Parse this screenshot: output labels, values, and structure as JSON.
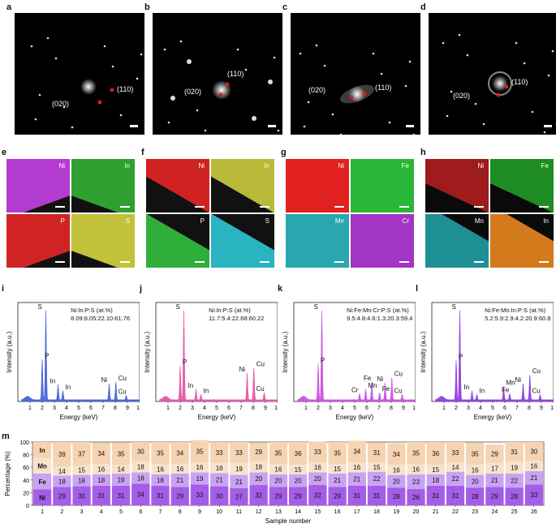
{
  "panel_labels": [
    "a",
    "b",
    "c",
    "d",
    "e",
    "f",
    "g",
    "h",
    "i",
    "j",
    "k",
    "l",
    "m"
  ],
  "saed": [
    {
      "label": "a",
      "spots": [
        "(110)",
        "(020)"
      ]
    },
    {
      "label": "b",
      "spots": [
        "(110)",
        "(020)"
      ]
    },
    {
      "label": "c",
      "spots": [
        "(110)",
        "(020)"
      ]
    },
    {
      "label": "d",
      "spots": [
        "(110)",
        "(020)"
      ]
    }
  ],
  "maps": [
    {
      "label": "e",
      "tiles": [
        {
          "el": "Ni",
          "color": "#b43bd0"
        },
        {
          "el": "In",
          "color": "#2fa02f"
        },
        {
          "el": "P",
          "color": "#d02424"
        },
        {
          "el": "S",
          "color": "#c2c23a"
        }
      ]
    },
    {
      "label": "f",
      "tiles": [
        {
          "el": "Ni",
          "color": "#cf2222"
        },
        {
          "el": "In",
          "color": "#b9b93a"
        },
        {
          "el": "P",
          "color": "#2faf3a"
        },
        {
          "el": "S",
          "color": "#2ab3c0"
        }
      ]
    },
    {
      "label": "g",
      "tiles": [
        {
          "el": "Ni",
          "color": "#e12020"
        },
        {
          "el": "Fe",
          "color": "#29b536"
        },
        {
          "el": "Mn",
          "color": "#28a7ae"
        },
        {
          "el": "Cr",
          "color": "#a335c4"
        }
      ]
    },
    {
      "label": "h",
      "tiles": [
        {
          "el": "Ni",
          "color": "#9e1c1c"
        },
        {
          "el": "Fe",
          "color": "#1e8c22"
        },
        {
          "el": "Mn",
          "color": "#1f8f96"
        },
        {
          "el": "In",
          "color": "#d27a1c"
        }
      ]
    }
  ],
  "spectra": [
    {
      "label": "i",
      "color": "#3d5bd8",
      "formula": "Ni:In:P:S (at.%)",
      "values": "8.09:8.05:22.10:61.76",
      "peaks": [
        {
          "l": "S",
          "x": 2.3,
          "h": 1.0
        },
        {
          "l": "P",
          "x": 2.0,
          "h": 0.45
        },
        {
          "l": "In",
          "x": 3.3,
          "h": 0.17
        },
        {
          "l": "In",
          "x": 3.7,
          "h": 0.1
        },
        {
          "l": "Ni",
          "x": 7.5,
          "h": 0.18
        },
        {
          "l": "Cu",
          "x": 8.05,
          "h": 0.2
        },
        {
          "l": "Cu",
          "x": 8.9,
          "h": 0.05
        }
      ]
    },
    {
      "label": "j",
      "color": "#e34fa0",
      "formula": "Ni:In:P:S (at.%)",
      "values": "11.7:5.4:22.68:60.22",
      "peaks": [
        {
          "l": "S",
          "x": 2.3,
          "h": 1.0
        },
        {
          "l": "P",
          "x": 2.0,
          "h": 0.38
        },
        {
          "l": "In",
          "x": 3.3,
          "h": 0.12
        },
        {
          "l": "In",
          "x": 3.7,
          "h": 0.06
        },
        {
          "l": "Ni",
          "x": 7.5,
          "h": 0.3
        },
        {
          "l": "Cu",
          "x": 8.05,
          "h": 0.36
        },
        {
          "l": "Cu",
          "x": 8.9,
          "h": 0.08
        }
      ]
    },
    {
      "label": "k",
      "color": "#c44be0",
      "formula": "Ni:Fe:Mn:Cr:P:S (at.%)",
      "values": "9.5:4.8:4.6:1.3:20.3:59.4",
      "peaks": [
        {
          "l": "S",
          "x": 2.3,
          "h": 1.0
        },
        {
          "l": "P",
          "x": 2.0,
          "h": 0.4
        },
        {
          "l": "Cr",
          "x": 5.4,
          "h": 0.07
        },
        {
          "l": "Mn",
          "x": 5.9,
          "h": 0.12
        },
        {
          "l": "Fe",
          "x": 6.4,
          "h": 0.2
        },
        {
          "l": "Fe",
          "x": 7.05,
          "h": 0.08
        },
        {
          "l": "Ni",
          "x": 7.5,
          "h": 0.19
        },
        {
          "l": "Cu",
          "x": 8.05,
          "h": 0.25
        },
        {
          "l": "Cu",
          "x": 8.9,
          "h": 0.06
        }
      ]
    },
    {
      "label": "l",
      "color": "#8a35e0",
      "formula": "Ni:Fe:Mn:In:P:S (at.%)",
      "values": "5.2:5.9:2.9:4.2:20.9:60.8",
      "peaks": [
        {
          "l": "S",
          "x": 2.3,
          "h": 1.0
        },
        {
          "l": "P",
          "x": 2.0,
          "h": 0.44
        },
        {
          "l": "In",
          "x": 3.3,
          "h": 0.1
        },
        {
          "l": "In",
          "x": 3.7,
          "h": 0.06
        },
        {
          "l": "Fe",
          "x": 6.4,
          "h": 0.07
        },
        {
          "l": "Mn",
          "x": 5.9,
          "h": 0.15
        },
        {
          "l": "Ni",
          "x": 7.5,
          "h": 0.18
        },
        {
          "l": "Cu",
          "x": 8.05,
          "h": 0.28
        },
        {
          "l": "Cu",
          "x": 8.9,
          "h": 0.06
        }
      ]
    }
  ],
  "spec_axes": {
    "xlabel": "Energy (keV)",
    "ylabel": "Intensity (a.u.)",
    "ticks": [
      "1",
      "2",
      "3",
      "4",
      "5",
      "6",
      "7",
      "8",
      "9",
      "10"
    ]
  },
  "chart_data": {
    "type": "bar",
    "title": "",
    "xlabel": "Sample number",
    "ylabel": "Percentage (%)",
    "categories": [
      "1",
      "2",
      "3",
      "4",
      "5",
      "6",
      "7",
      "8",
      "9",
      "10",
      "11",
      "12",
      "13",
      "14",
      "15",
      "16",
      "17",
      "18",
      "19",
      "20",
      "21",
      "22",
      "23",
      "24",
      "25",
      "26"
    ],
    "series": [
      {
        "name": "Ni",
        "color": "#a45de8",
        "values": [
          null,
          29,
          30,
          31,
          31,
          34,
          31,
          29,
          33,
          30,
          27,
          32,
          29,
          29,
          32,
          29,
          31,
          31,
          28,
          26,
          31,
          31,
          28,
          29,
          28,
          33
        ]
      },
      {
        "name": "Fe",
        "color": "#c9a3f2",
        "values": [
          null,
          18,
          18,
          18,
          19,
          18,
          18,
          21,
          19,
          21,
          21,
          20,
          20,
          20,
          20,
          21,
          21,
          22,
          20,
          23,
          18,
          22,
          20,
          21,
          22,
          21
        ]
      },
      {
        "name": "Mn",
        "color": "#f7e2cc",
        "values": [
          null,
          14,
          15,
          16,
          14,
          18,
          16,
          16,
          16,
          16,
          19,
          18,
          16,
          15,
          16,
          15,
          16,
          15,
          16,
          16,
          15,
          14,
          16,
          17,
          19,
          16
        ]
      },
      {
        "name": "In",
        "color": "#f6d4b2",
        "values": [
          null,
          39,
          37,
          34,
          35,
          30,
          35,
          34,
          35,
          33,
          33,
          29,
          35,
          36,
          33,
          35,
          34,
          31,
          34,
          35,
          36,
          33,
          35,
          29,
          31,
          30
        ]
      }
    ],
    "ylim": [
      0,
      100
    ]
  }
}
